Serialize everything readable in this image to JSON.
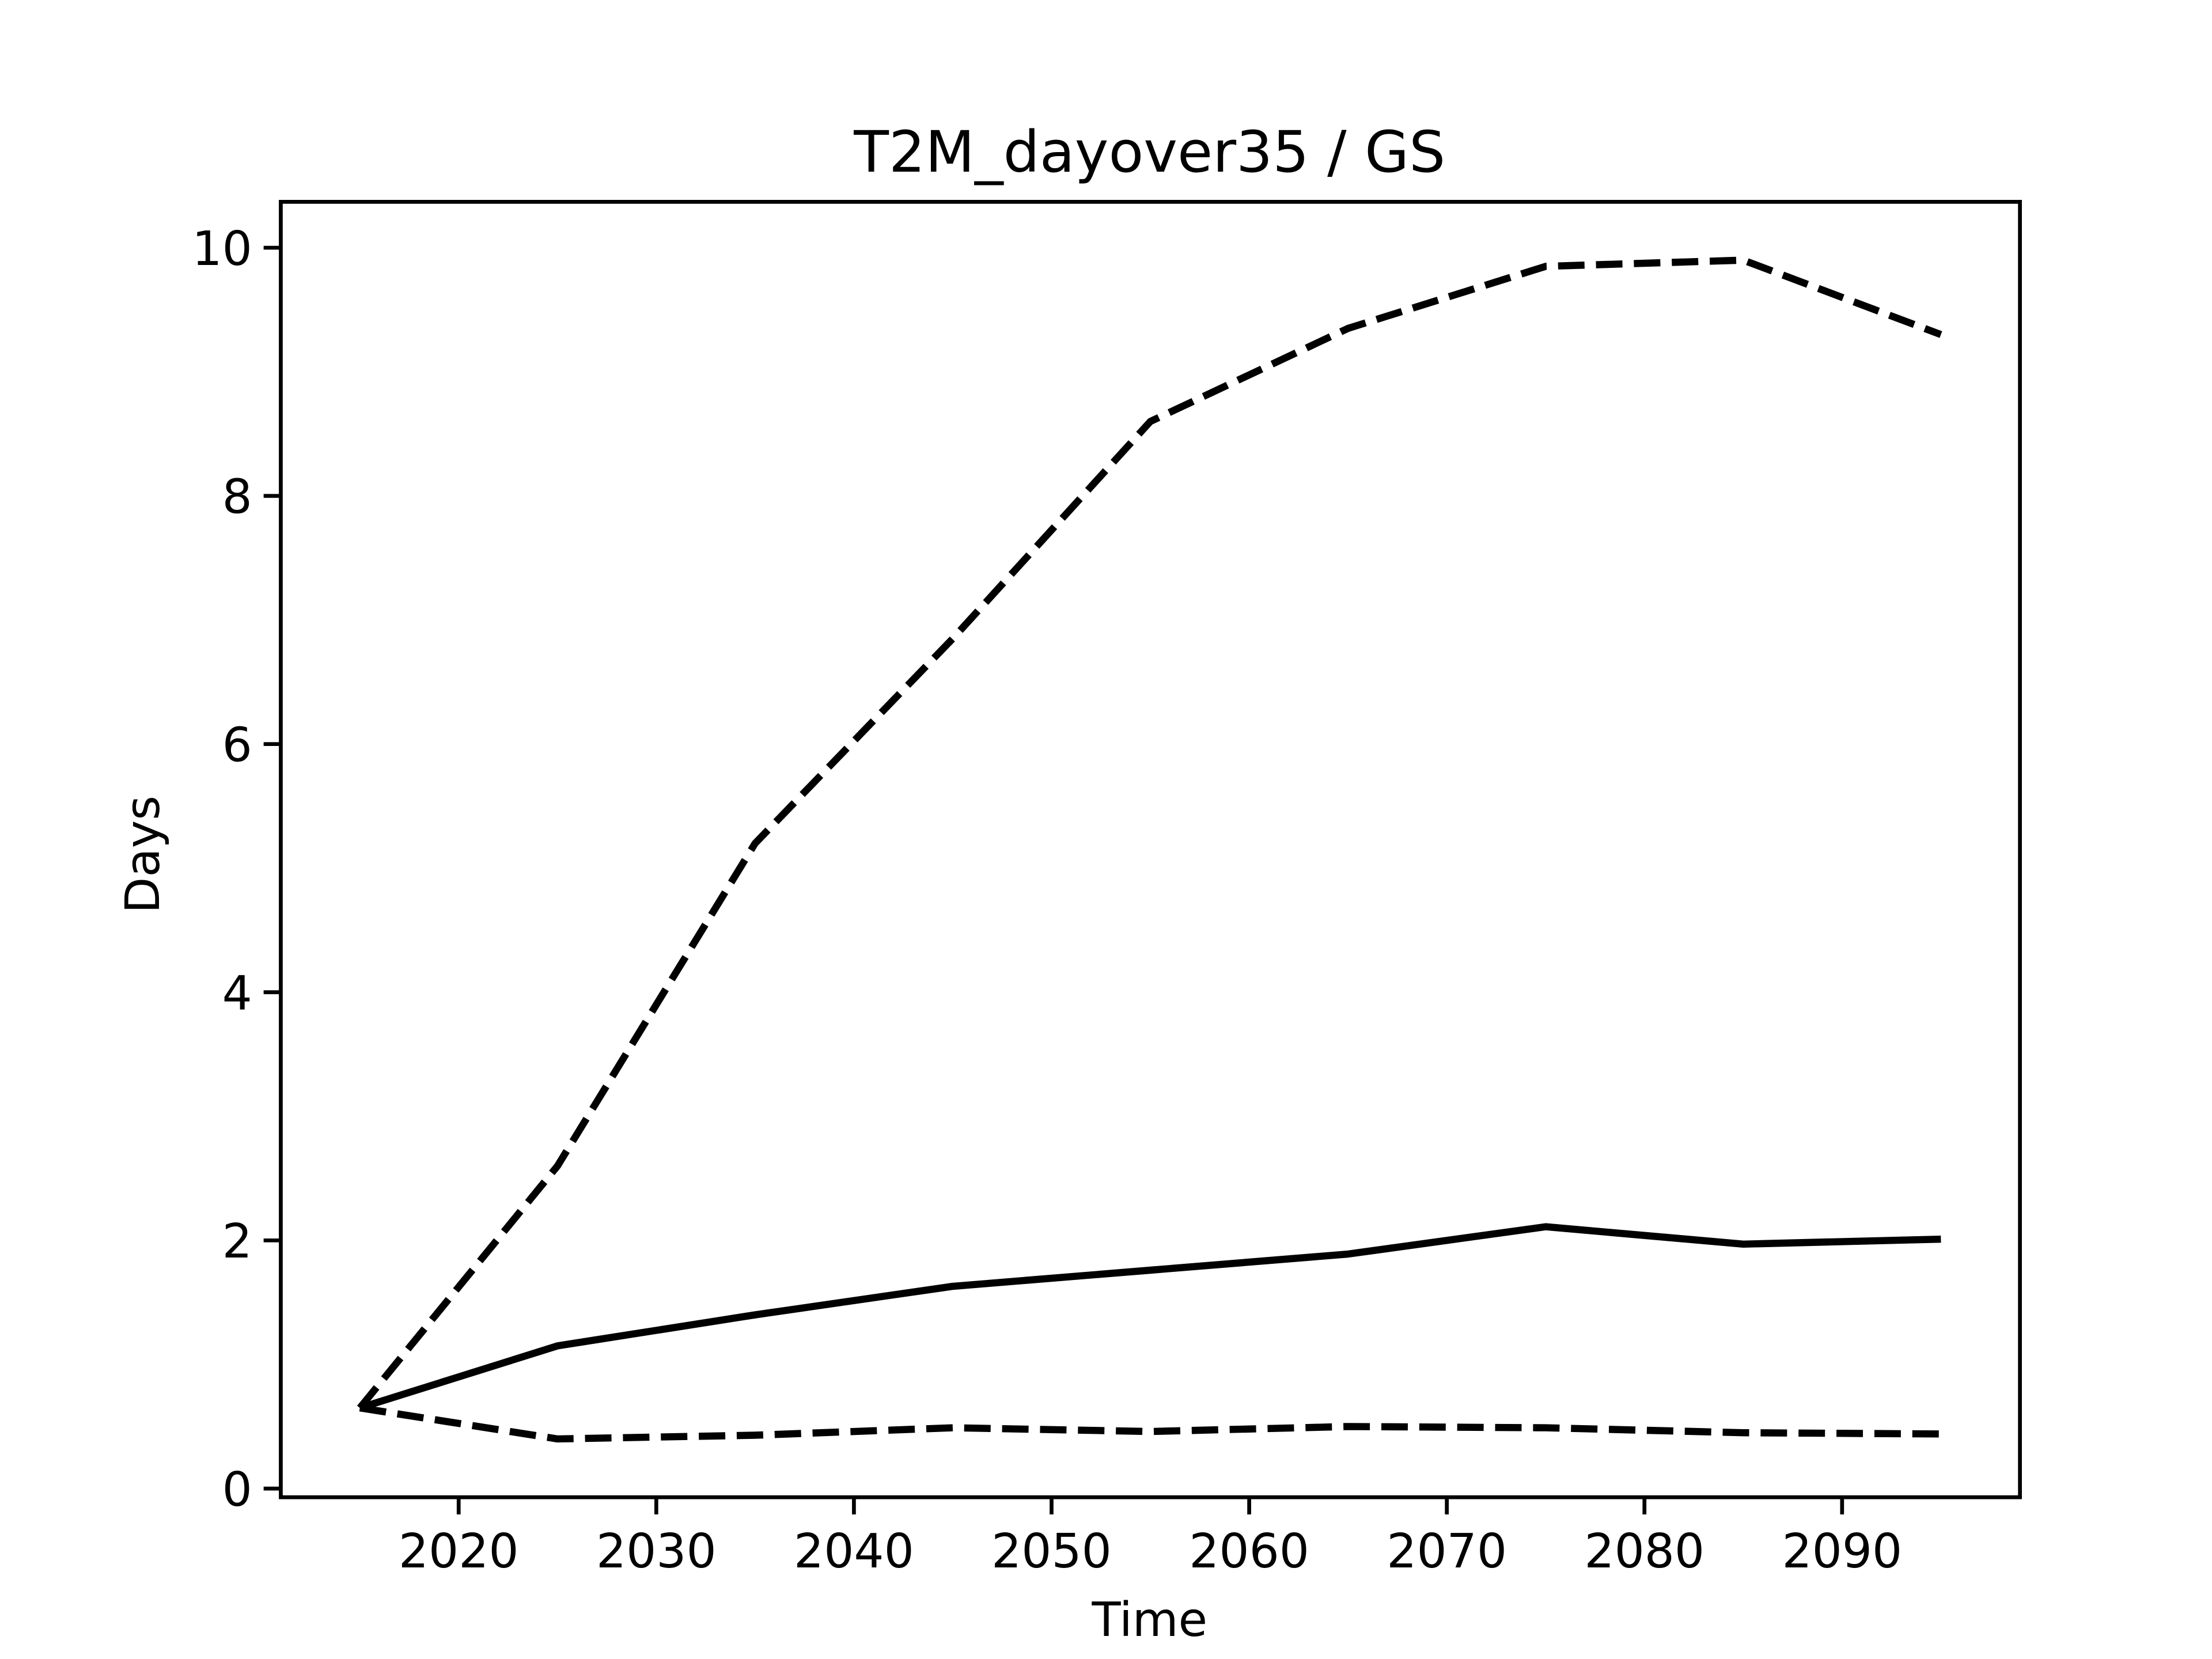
{
  "chart_data": {
    "type": "line",
    "title": "T2M_dayover35 / GS",
    "xlabel": "Time",
    "ylabel": "Days",
    "x": [
      2015,
      2025,
      2035,
      2045,
      2055,
      2065,
      2075,
      2085,
      2095
    ],
    "series": [
      {
        "color": "#000000",
        "linestyle": "solid",
        "values": [
          0.65,
          1.15,
          1.4,
          1.63,
          1.76,
          1.89,
          2.11,
          1.97,
          2.01
        ]
      },
      {
        "color": "#000000",
        "linestyle": "dashed",
        "values": [
          0.65,
          2.6,
          5.2,
          6.85,
          8.6,
          9.35,
          9.85,
          9.9,
          9.3
        ]
      },
      {
        "color": "#000000",
        "linestyle": "dashed",
        "values": [
          0.65,
          0.4,
          0.43,
          0.49,
          0.46,
          0.5,
          0.49,
          0.45,
          0.44
        ]
      }
    ],
    "xlim": [
      2011,
      2099
    ],
    "xticks": [
      2020,
      2030,
      2040,
      2050,
      2060,
      2070,
      2080,
      2090
    ],
    "ylim": [
      -0.07,
      10.37
    ],
    "yticks": [
      0,
      2,
      4,
      6,
      8,
      10
    ],
    "grid": false
  }
}
